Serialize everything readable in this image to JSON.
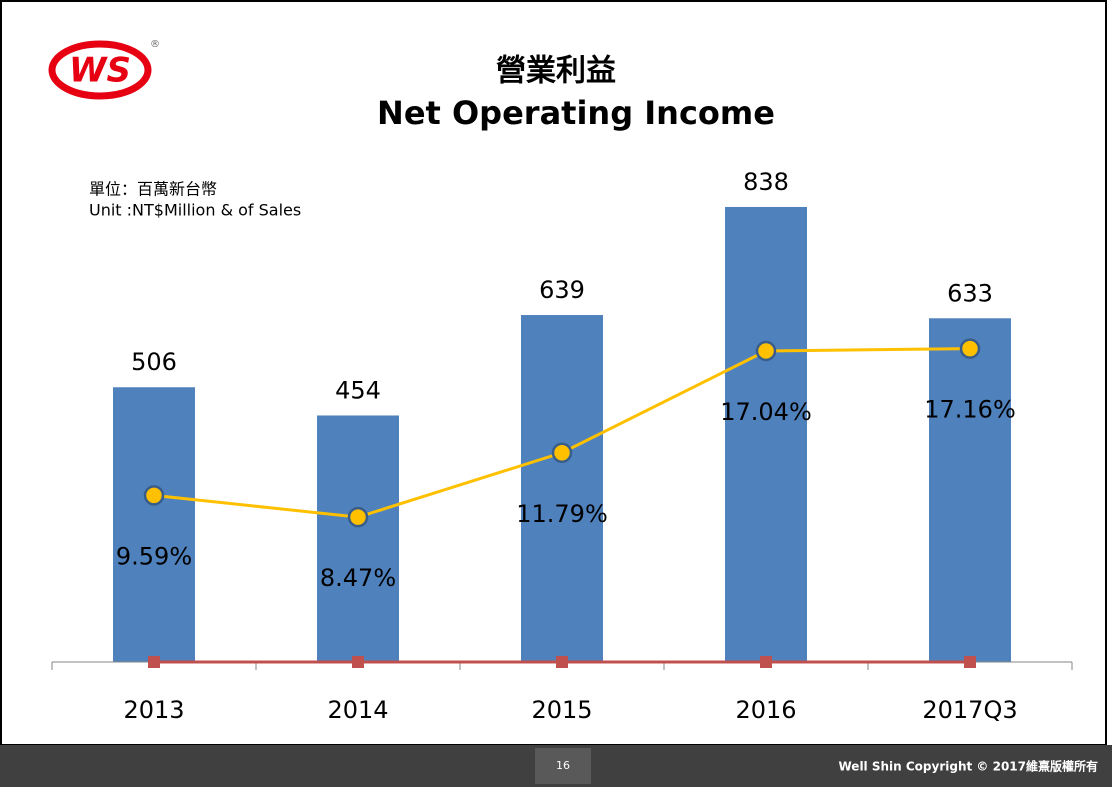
{
  "logo": "WS",
  "chart_data": {
    "type": "bar",
    "title": "營業利益",
    "subtitle": "Net Operating Income",
    "annotations": [
      "單位：百萬新台幣",
      "Unit :NT$Million & of Sales"
    ],
    "categories": [
      "2013",
      "2014",
      "2015",
      "2016",
      "2017Q3"
    ],
    "ylim": [
      0,
      1000
    ],
    "y2lim": [
      1,
      29
    ],
    "series": [
      {
        "type": "bar",
        "color": "#4f81bd",
        "values": [
          506,
          454,
          639,
          838,
          633
        ]
      },
      {
        "type": "line",
        "axis": "y2",
        "color": "#ffc000",
        "marker_edge": "#385d8a",
        "values": [
          9.59,
          8.47,
          11.79,
          17.04,
          17.16
        ],
        "value_labels": [
          "9.59%",
          "8.47%",
          "11.79%",
          "17.04%",
          "17.16%"
        ]
      },
      {
        "type": "line",
        "color": "#c0504d",
        "values": [
          0,
          0,
          0,
          0,
          0
        ]
      }
    ]
  },
  "footer": {
    "page": "16",
    "copyright": "Well Shin Copyright © 2017維熹版權所有"
  }
}
